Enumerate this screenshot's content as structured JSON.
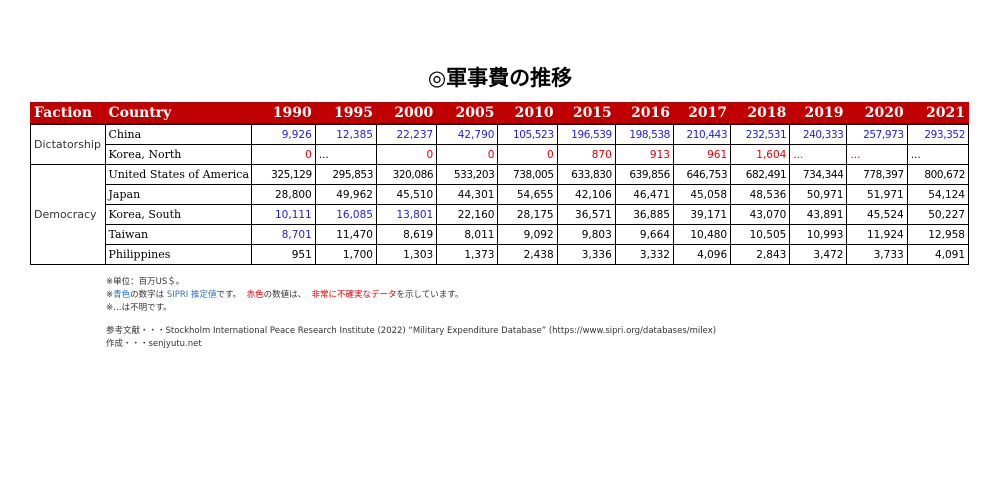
{
  "title": "◎軍事費の推移",
  "headers": {
    "faction": "Faction",
    "country": "Country",
    "years": [
      "1990",
      "1995",
      "2000",
      "2005",
      "2010",
      "2015",
      "2016",
      "2017",
      "2018",
      "2019",
      "2020",
      "2021"
    ]
  },
  "groups": [
    {
      "faction": "Dictatorship",
      "rows": [
        {
          "country": "China",
          "values": [
            "9,926",
            "12,385",
            "22,237",
            "42,790",
            "105,523",
            "196,539",
            "198,538",
            "210,443",
            "232,531",
            "240,333",
            "257,973",
            "293,352"
          ],
          "colors": [
            "blue",
            "blue",
            "blue",
            "blue",
            "blue",
            "blue",
            "blue",
            "blue",
            "blue",
            "blue",
            "blue",
            "blue"
          ]
        },
        {
          "country": "Korea, North",
          "values": [
            "0",
            "...",
            "0",
            "0",
            "0",
            "870",
            "913",
            "961",
            "1,604",
            "...",
            "...",
            "..."
          ],
          "colors": [
            "red",
            "dots",
            "red",
            "red",
            "red",
            "red",
            "red",
            "red",
            "red",
            "reddots",
            "reddots",
            "dots"
          ]
        }
      ]
    },
    {
      "faction": "Democracy",
      "rows": [
        {
          "country": "United States of America",
          "values": [
            "325,129",
            "295,853",
            "320,086",
            "533,203",
            "738,005",
            "633,830",
            "639,856",
            "646,753",
            "682,491",
            "734,344",
            "778,397",
            "800,672"
          ],
          "colors": [
            "",
            "",
            "",
            "",
            "",
            "",
            "",
            "",
            "",
            "",
            "",
            ""
          ]
        },
        {
          "country": "Japan",
          "values": [
            "28,800",
            "49,962",
            "45,510",
            "44,301",
            "54,655",
            "42,106",
            "46,471",
            "45,058",
            "48,536",
            "50,971",
            "51,971",
            "54,124"
          ],
          "colors": [
            "",
            "",
            "",
            "",
            "",
            "",
            "",
            "",
            "",
            "",
            "",
            ""
          ]
        },
        {
          "country": "Korea, South",
          "values": [
            "10,111",
            "16,085",
            "13,801",
            "22,160",
            "28,175",
            "36,571",
            "36,885",
            "39,171",
            "43,070",
            "43,891",
            "45,524",
            "50,227"
          ],
          "colors": [
            "blue",
            "blue",
            "blue",
            "",
            "",
            "",
            "",
            "",
            "",
            "",
            "",
            ""
          ]
        },
        {
          "country": "Taiwan",
          "values": [
            "8,701",
            "11,470",
            "8,619",
            "8,011",
            "9,092",
            "9,803",
            "9,664",
            "10,480",
            "10,505",
            "10,993",
            "11,924",
            "12,958"
          ],
          "colors": [
            "blue",
            "",
            "",
            "",
            "",
            "",
            "",
            "",
            "",
            "",
            "",
            ""
          ]
        },
        {
          "country": "Philippines",
          "values": [
            "951",
            "1,700",
            "1,303",
            "1,373",
            "2,438",
            "3,336",
            "3,332",
            "4,096",
            "2,843",
            "3,472",
            "3,733",
            "4,091"
          ],
          "colors": [
            "",
            "",
            "",
            "",
            "",
            "",
            "",
            "",
            "",
            "",
            "",
            ""
          ]
        }
      ]
    }
  ],
  "notes": {
    "unit": "※単位：百万US＄。",
    "color_note_1": "※",
    "color_note_blue": "青色",
    "color_note_2": "の数字は ",
    "color_note_sipri": "SIPRI 推定値",
    "color_note_3": "です。",
    "color_note_red": "赤色",
    "color_note_4": "の数値は、",
    "color_note_unreliable": "非常に不確実なデータ",
    "color_note_5": "を示しています。",
    "unknown": "※…は不明です。",
    "reference": "参考文献・・・Stockholm International Peace Research Institute (2022) “Military Expenditure Database” (https://www.sipri.org/databases/milex)",
    "author": "作成・・・senjyutu.net"
  }
}
